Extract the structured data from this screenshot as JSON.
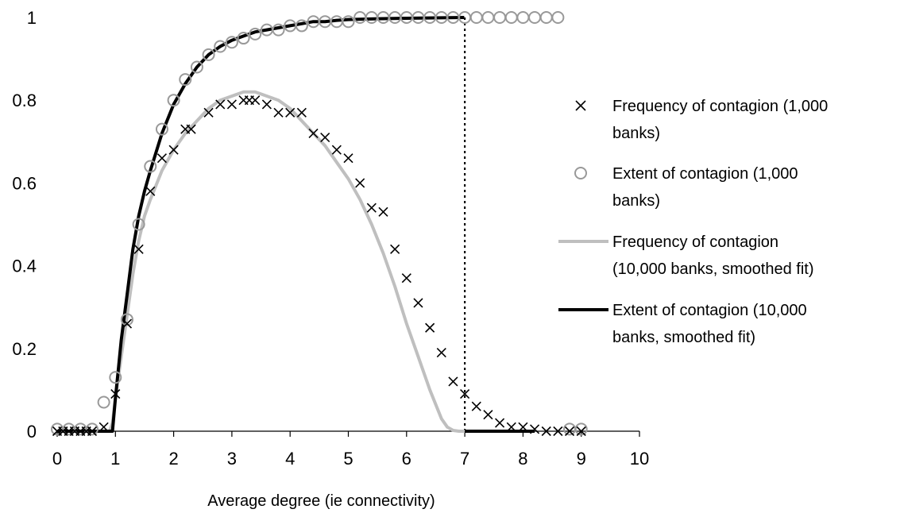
{
  "chart_data": {
    "type": "scatter",
    "title": "",
    "xlabel": "Average degree (ie connectivity)",
    "ylabel": "",
    "xlim": [
      0,
      10
    ],
    "ylim": [
      0,
      1
    ],
    "x_ticks": [
      "0",
      "1",
      "2",
      "3",
      "4",
      "5",
      "6",
      "7",
      "8",
      "9",
      "10"
    ],
    "y_ticks": [
      "0",
      "0.2",
      "0.4",
      "0.6",
      "0.8",
      "1"
    ],
    "grid": false,
    "legend_position": "right",
    "reference_line": {
      "x": 7,
      "style": "dotted"
    },
    "series": [
      {
        "name": "Frequency of contagion (1,000 banks)",
        "legend_lines": [
          "Frequency of contagion (1,000",
          "banks)"
        ],
        "marker": "x",
        "color": "#000000",
        "x": [
          0,
          0.1,
          0.2,
          0.3,
          0.4,
          0.5,
          0.6,
          0.8,
          1.0,
          1.2,
          1.4,
          1.6,
          1.8,
          2.0,
          2.2,
          2.3,
          2.6,
          2.8,
          3.0,
          3.2,
          3.3,
          3.4,
          3.6,
          3.8,
          4.0,
          4.2,
          4.4,
          4.6,
          4.8,
          5.0,
          5.2,
          5.4,
          5.6,
          5.8,
          6.0,
          6.2,
          6.4,
          6.6,
          6.8,
          7.0,
          7.2,
          7.4,
          7.6,
          7.8,
          8.0,
          8.2,
          8.4,
          8.6,
          8.8,
          9.0
        ],
        "y": [
          0,
          0,
          0,
          0,
          0,
          0,
          0,
          0.01,
          0.09,
          0.26,
          0.44,
          0.58,
          0.66,
          0.68,
          0.73,
          0.73,
          0.77,
          0.79,
          0.79,
          0.8,
          0.8,
          0.8,
          0.79,
          0.77,
          0.77,
          0.77,
          0.72,
          0.71,
          0.68,
          0.66,
          0.6,
          0.54,
          0.53,
          0.44,
          0.37,
          0.31,
          0.25,
          0.19,
          0.12,
          0.09,
          0.06,
          0.04,
          0.02,
          0.01,
          0.01,
          0.005,
          0,
          0,
          0,
          0
        ]
      },
      {
        "name": "Extent of contagion (1,000 banks)",
        "legend_lines": [
          "Extent of contagion (1,000",
          "banks)"
        ],
        "marker": "circle",
        "color": "#999999",
        "x": [
          0,
          0.2,
          0.4,
          0.6,
          0.8,
          1.0,
          1.2,
          1.4,
          1.6,
          1.8,
          2.0,
          2.2,
          2.4,
          2.6,
          2.8,
          3.0,
          3.2,
          3.4,
          3.6,
          3.8,
          4.0,
          4.2,
          4.4,
          4.6,
          4.8,
          5.0,
          5.2,
          5.4,
          5.6,
          5.8,
          6.0,
          6.2,
          6.4,
          6.6,
          6.8,
          7.0,
          7.2,
          7.4,
          7.6,
          7.8,
          8.0,
          8.2,
          8.4,
          8.6,
          8.8,
          9.0
        ],
        "y": [
          0.005,
          0.005,
          0.005,
          0.005,
          0.07,
          0.13,
          0.27,
          0.5,
          0.64,
          0.73,
          0.8,
          0.85,
          0.88,
          0.91,
          0.93,
          0.94,
          0.95,
          0.96,
          0.97,
          0.97,
          0.98,
          0.98,
          0.99,
          0.99,
          0.99,
          0.99,
          1.0,
          1.0,
          1.0,
          1.0,
          1.0,
          1.0,
          1.0,
          1.0,
          1.0,
          1.0,
          1.0,
          1.0,
          1.0,
          1.0,
          1.0,
          1.0,
          1.0,
          1.0,
          0.005,
          0.005
        ]
      },
      {
        "name": "Frequency of contagion (10,000 banks, smoothed fit)",
        "legend_lines": [
          "Frequency of contagion",
          "(10,000 banks, smoothed fit)"
        ],
        "marker": "line",
        "color": "#bfbfbf",
        "x": [
          0,
          0.9,
          0.95,
          1.0,
          1.1,
          1.2,
          1.3,
          1.4,
          1.5,
          1.6,
          1.8,
          2.0,
          2.2,
          2.4,
          2.6,
          2.8,
          3.0,
          3.2,
          3.4,
          3.6,
          3.8,
          4.0,
          4.2,
          4.4,
          4.6,
          4.8,
          5.0,
          5.2,
          5.4,
          5.6,
          5.8,
          6.0,
          6.2,
          6.4,
          6.6,
          6.7,
          6.8,
          6.9,
          7.0
        ],
        "y": [
          0,
          0,
          0.02,
          0.08,
          0.18,
          0.28,
          0.38,
          0.46,
          0.52,
          0.56,
          0.63,
          0.68,
          0.72,
          0.75,
          0.78,
          0.8,
          0.81,
          0.82,
          0.82,
          0.81,
          0.8,
          0.78,
          0.75,
          0.72,
          0.69,
          0.65,
          0.61,
          0.56,
          0.5,
          0.43,
          0.35,
          0.26,
          0.18,
          0.1,
          0.03,
          0.01,
          0.002,
          0,
          0
        ]
      },
      {
        "name": "Extent of contagion (10,000 banks, smoothed fit)",
        "legend_lines": [
          "Extent of contagion (10,000",
          "banks, smoothed fit)"
        ],
        "marker": "line",
        "color": "#000000",
        "x": [
          0,
          0.95,
          1.0,
          1.05,
          1.1,
          1.2,
          1.3,
          1.4,
          1.5,
          1.6,
          1.8,
          2.0,
          2.2,
          2.4,
          2.6,
          2.8,
          3.0,
          3.2,
          3.4,
          3.6,
          3.8,
          4.0,
          4.2,
          4.4,
          4.6,
          4.8,
          5.0,
          5.5,
          6.0,
          6.5,
          6.99
        ],
        "y": [
          0,
          0,
          0.08,
          0.15,
          0.22,
          0.33,
          0.44,
          0.52,
          0.58,
          0.63,
          0.72,
          0.79,
          0.84,
          0.88,
          0.91,
          0.93,
          0.945,
          0.955,
          0.965,
          0.97,
          0.975,
          0.98,
          0.985,
          0.99,
          0.99,
          0.993,
          0.995,
          0.997,
          0.998,
          0.999,
          1.0
        ],
        "x_after": [
          7.0,
          8.2
        ],
        "y_after": [
          0,
          0
        ]
      }
    ]
  }
}
